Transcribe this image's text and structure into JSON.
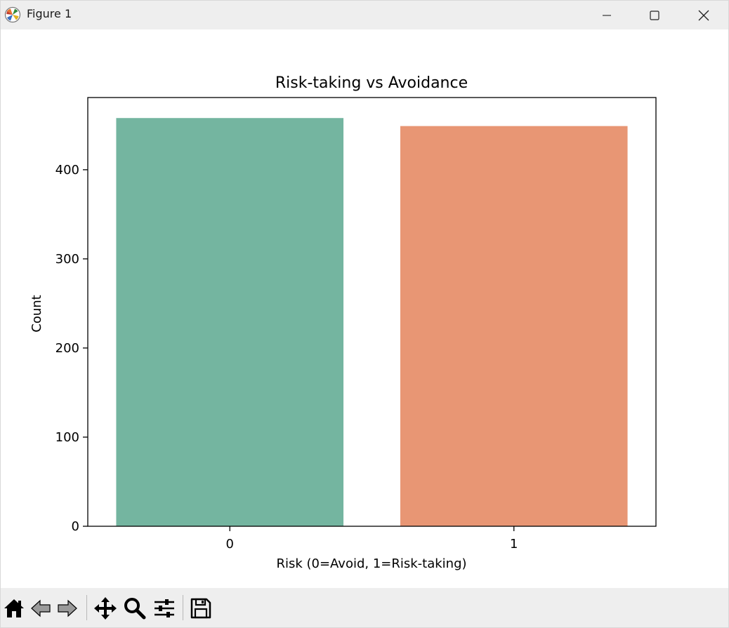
{
  "window": {
    "title": "Figure 1",
    "app_icon": "matplotlib-icon",
    "controls": [
      "minimize-icon",
      "maximize-icon",
      "close-icon"
    ]
  },
  "toolbar": {
    "tools": [
      "home-icon",
      "back-arrow-icon",
      "forward-arrow-icon",
      "pan-move-icon",
      "zoom-magnifier-icon",
      "configure-subplots-icon",
      "save-floppy-icon"
    ]
  },
  "colors": {
    "bar_0": "#74b5a0",
    "bar_1": "#e89674"
  },
  "chart_data": {
    "type": "bar",
    "title": "Risk-taking vs Avoidance",
    "xlabel": "Risk (0=Avoid, 1=Risk-taking)",
    "ylabel": "Count",
    "categories": [
      "0",
      "1"
    ],
    "values": [
      458,
      449
    ],
    "ylim": [
      0,
      481
    ],
    "yticks": [
      0,
      100,
      200,
      300,
      400
    ],
    "grid": false,
    "legend": false
  }
}
